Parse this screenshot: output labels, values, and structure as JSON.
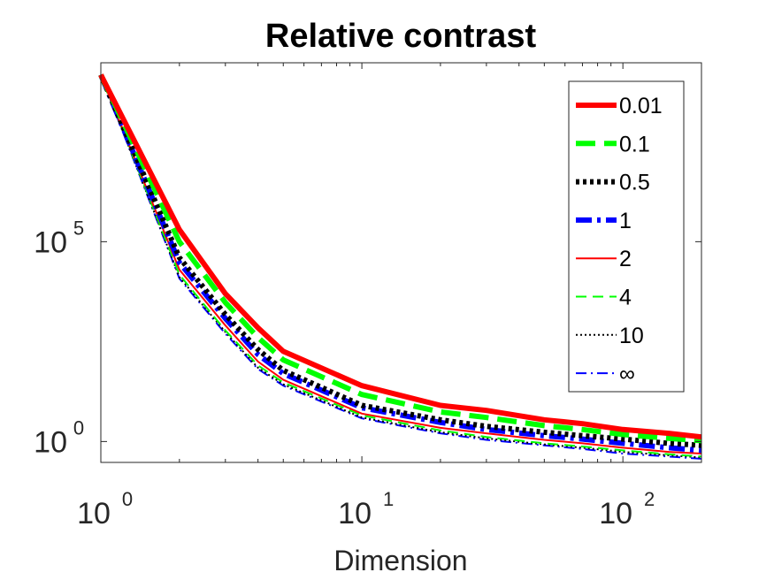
{
  "chart_data": {
    "type": "line",
    "title": "Relative contrast",
    "xlabel": "Dimension",
    "ylabel": "",
    "xscale": "log",
    "yscale": "log",
    "xlim": [
      1,
      200
    ],
    "ylim": [
      0.3,
      3000000000
    ],
    "grid": false,
    "legend_position": "top-right",
    "x_ticks": [
      {
        "value": 1,
        "base": "10",
        "exp": "0"
      },
      {
        "value": 10,
        "base": "10",
        "exp": "1"
      },
      {
        "value": 100,
        "base": "10",
        "exp": "2"
      }
    ],
    "y_ticks": [
      {
        "value": 1,
        "base": "10",
        "exp": "0"
      },
      {
        "value": 100000,
        "base": "10",
        "exp": "5"
      }
    ],
    "x": [
      1,
      2,
      3,
      4,
      5,
      10,
      20,
      30,
      50,
      70,
      100,
      150,
      200
    ],
    "series": [
      {
        "name": "0.01",
        "color": "#ff0000",
        "style": "solid",
        "width": 6,
        "values": [
          1500000000,
          200000,
          5000,
          700,
          180,
          25,
          8,
          6,
          3.5,
          2.8,
          2.0,
          1.6,
          1.3
        ]
      },
      {
        "name": "0.1",
        "color": "#00ff00",
        "style": "dashed",
        "width": 6,
        "values": [
          1500000000,
          100000,
          3000,
          400,
          110,
          15,
          5.5,
          4.0,
          2.5,
          2.0,
          1.5,
          1.2,
          1.05
        ]
      },
      {
        "name": "0.5",
        "color": "#000000",
        "style": "dotted",
        "width": 6,
        "values": [
          1500000000,
          40000,
          1500,
          200,
          60,
          8,
          3.5,
          2.4,
          1.7,
          1.4,
          1.15,
          0.9,
          0.8
        ]
      },
      {
        "name": "1",
        "color": "#0000ff",
        "style": "dashdot",
        "width": 6,
        "values": [
          1500000000,
          30000,
          1200,
          150,
          50,
          7,
          3.0,
          2.0,
          1.4,
          1.15,
          0.9,
          0.7,
          0.6
        ]
      },
      {
        "name": "2",
        "color": "#ff0000",
        "style": "solid",
        "width": 2,
        "values": [
          1500000000,
          20000,
          800,
          100,
          35,
          5,
          2.2,
          1.6,
          1.1,
          0.9,
          0.7,
          0.55,
          0.5
        ]
      },
      {
        "name": "4",
        "color": "#00ff00",
        "style": "dashed",
        "width": 2,
        "values": [
          1500000000,
          15000,
          600,
          80,
          30,
          4.5,
          1.9,
          1.3,
          0.9,
          0.75,
          0.6,
          0.48,
          0.42
        ]
      },
      {
        "name": "10",
        "color": "#000000",
        "style": "dotted",
        "width": 2,
        "values": [
          1500000000,
          13000,
          550,
          70,
          27,
          4.0,
          1.7,
          1.2,
          0.85,
          0.7,
          0.55,
          0.45,
          0.4
        ]
      },
      {
        "name": "∞",
        "color": "#0000ff",
        "style": "dashdot",
        "width": 2,
        "values": [
          1500000000,
          12000,
          500,
          65,
          25,
          3.8,
          1.6,
          1.1,
          0.8,
          0.65,
          0.5,
          0.42,
          0.37
        ]
      }
    ]
  }
}
